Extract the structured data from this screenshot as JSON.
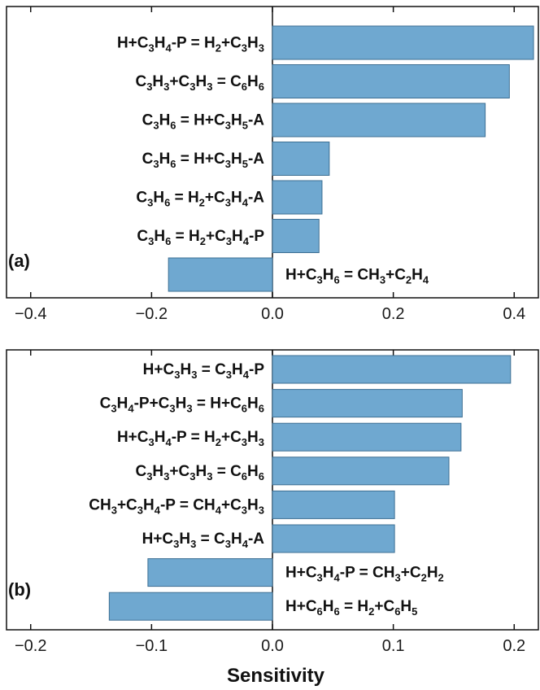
{
  "chart_data": [
    {
      "type": "bar",
      "orientation": "horizontal",
      "panel_label": "(a)",
      "categories": [
        "H+C3H4-P = H2+C3H3",
        "C3H3+C3H3 = C6H6",
        "C3H6 = H+C3H5-A",
        "C3H6 = H+C3H5-A",
        "C3H6 = H2+C3H4-A",
        "C3H6 = H2+C3H4-P",
        "H+C3H6 = CH3+C2H4"
      ],
      "values": [
        0.432,
        0.392,
        0.352,
        0.094,
        0.082,
        0.077,
        -0.172
      ],
      "xlim": [
        -0.44,
        0.44
      ],
      "xticks": [
        -0.4,
        -0.2,
        0.0,
        0.2,
        0.4
      ],
      "xtick_labels": [
        "−0.4",
        "−0.2",
        "0.0",
        "0.2",
        "0.4"
      ],
      "grid": false
    },
    {
      "type": "bar",
      "orientation": "horizontal",
      "panel_label": "(b)",
      "categories": [
        "H+C3H3 = C3H4-P",
        "C3H4-P+C3H3 = H+C6H6",
        "H+C3H4-P = H2+C3H3",
        "C3H3+C3H3 = C6H6",
        "CH3+C3H4-P = CH4+C3H3",
        "H+C3H3 = C3H4-A",
        "H+C3H4-P = CH3+C2H2",
        "H+C6H6 = H2+C6H5"
      ],
      "values": [
        0.197,
        0.157,
        0.156,
        0.146,
        0.101,
        0.101,
        -0.103,
        -0.135
      ],
      "xlim": [
        -0.22,
        0.22
      ],
      "xticks": [
        -0.2,
        -0.1,
        0.0,
        0.1,
        0.2
      ],
      "xtick_labels": [
        "−0.2",
        "−0.1",
        "0.0",
        "0.1",
        "0.2"
      ],
      "grid": false
    }
  ],
  "xlabel": "Sensitivity"
}
